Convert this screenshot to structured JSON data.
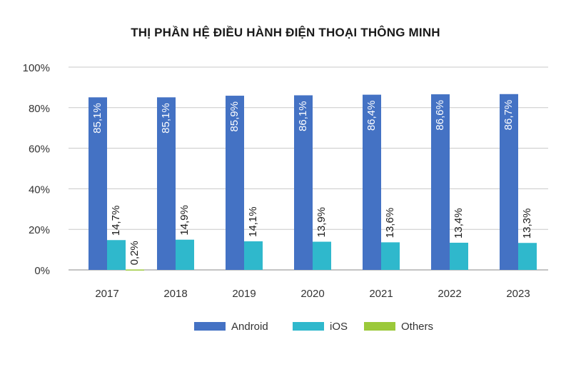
{
  "chart_data": {
    "type": "bar",
    "title": "THỊ PHẦN HỆ ĐIỀU HÀNH ĐIỆN THOẠI THÔNG MINH",
    "xlabel": "",
    "ylabel": "",
    "categories": [
      "2017",
      "2018",
      "2019",
      "2020",
      "2021",
      "2022",
      "2023"
    ],
    "ylim": [
      0,
      100
    ],
    "yticks": [
      0,
      20,
      40,
      60,
      80,
      100
    ],
    "ytick_labels": [
      "0%",
      "20%",
      "40%",
      "60%",
      "80%",
      "100%"
    ],
    "grid": true,
    "legend_position": "bottom",
    "series": [
      {
        "name": "Android",
        "color": "#4472c4",
        "values": [
          85.1,
          85.1,
          85.9,
          86.1,
          86.4,
          86.6,
          86.7
        ],
        "labels": [
          "85,1%",
          "85,1%",
          "85,9%",
          "86,1%",
          "86,4%",
          "86,6%",
          "86,7%"
        ]
      },
      {
        "name": "iOS",
        "color": "#2fb8cc",
        "values": [
          14.7,
          14.9,
          14.1,
          13.9,
          13.6,
          13.4,
          13.3
        ],
        "labels": [
          "14,7%",
          "14,9%",
          "14,1%",
          "13,9%",
          "13,6%",
          "13,4%",
          "13,3%"
        ]
      },
      {
        "name": "Others",
        "color": "#9bc93a",
        "values": [
          0.2,
          null,
          null,
          null,
          null,
          null,
          null
        ],
        "labels": [
          "0,2%",
          null,
          null,
          null,
          null,
          null,
          null
        ]
      }
    ]
  }
}
